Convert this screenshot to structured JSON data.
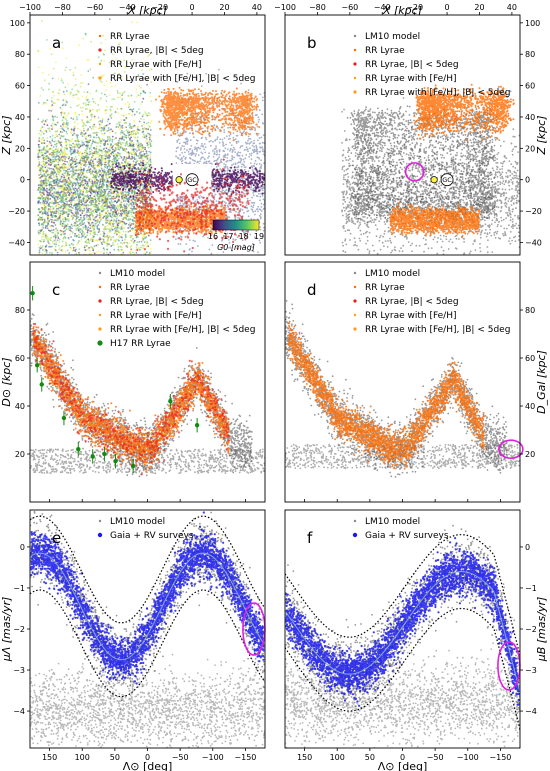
{
  "chart_data": [
    {
      "id": "a",
      "type": "scatter",
      "panel_label": "a",
      "xlabel": "X [kpc]",
      "ylabel": "Z [kpc]",
      "xlim": [
        -100,
        45
      ],
      "ylim": [
        -48,
        105
      ],
      "xticks": [
        -100,
        -80,
        -60,
        -40,
        -20,
        0,
        20,
        40
      ],
      "yticks": [
        -40,
        -20,
        0,
        20,
        40,
        60,
        80,
        100
      ],
      "x_axis_position": "top",
      "legend": [
        "RR Lyrae",
        "RR Lyrae, |B| < 5deg",
        "RR Lyrae with [Fe/H]",
        "RR Lyrae with [Fe/H], |B| < 5deg"
      ],
      "legend_position": "top-right",
      "markers": [
        {
          "label": "GC",
          "x": 0,
          "y": 0
        },
        {
          "label": "",
          "x": -8,
          "y": 0
        }
      ],
      "colorbar": {
        "label": "G0 [mag]",
        "ticks": [
          16,
          17,
          18,
          19
        ],
        "range": [
          16,
          19
        ],
        "colors": [
          "#440154",
          "#3b528b",
          "#21918c",
          "#5ec962",
          "#fde725"
        ]
      }
    },
    {
      "id": "b",
      "type": "scatter",
      "panel_label": "b",
      "xlabel": "X [kpc]",
      "ylabel": "Z [kpc]",
      "xlim": [
        -100,
        45
      ],
      "ylim": [
        -48,
        105
      ],
      "xticks": [
        -100,
        -80,
        -60,
        -40,
        -20,
        0,
        20,
        40
      ],
      "yticks": [
        -40,
        -20,
        0,
        20,
        40,
        60,
        80,
        100
      ],
      "x_axis_position": "top",
      "y_axis_position": "right",
      "legend": [
        "LM10 model",
        "RR Lyrae",
        "RR Lyrae, |B| < 5deg",
        "RR Lyrae with [Fe/H]",
        "RR Lyrae with [Fe/H], |B| < 5deg"
      ],
      "legend_position": "top-right",
      "markers": [
        {
          "label": "GC",
          "x": 0,
          "y": 0
        },
        {
          "label": "",
          "x": -8,
          "y": 0
        }
      ],
      "highlight_circle": {
        "x": -20,
        "y": 5
      }
    },
    {
      "id": "c",
      "type": "scatter",
      "panel_label": "c",
      "xlabel": "",
      "ylabel": "D⊙ [kpc]",
      "xlim": [
        180,
        -180
      ],
      "ylim": [
        0,
        100
      ],
      "yticks": [
        20,
        40,
        60,
        80
      ],
      "legend": [
        "LM10 model",
        "RR Lyrae",
        "RR Lyrae, |B| < 5deg",
        "RR Lyrae with [Fe/H]",
        "RR Lyrae with [Fe/H], |B| < 5deg",
        "H17 RR Lyrae"
      ],
      "legend_position": "top-right",
      "h17_points": [
        {
          "x": 176,
          "y": 87
        },
        {
          "x": 169,
          "y": 57
        },
        {
          "x": 162,
          "y": 49
        },
        {
          "x": 128,
          "y": 35
        },
        {
          "x": 106,
          "y": 22
        },
        {
          "x": 84,
          "y": 19
        },
        {
          "x": 66,
          "y": 20
        },
        {
          "x": 49,
          "y": 17
        },
        {
          "x": 22,
          "y": 15
        },
        {
          "x": -35,
          "y": 42
        },
        {
          "x": -76,
          "y": 32
        }
      ]
    },
    {
      "id": "d",
      "type": "scatter",
      "panel_label": "d",
      "xlabel": "",
      "ylabel": "D_Gal [kpc]",
      "xlim": [
        180,
        -180
      ],
      "ylim": [
        0,
        100
      ],
      "yticks": [
        20,
        40,
        60,
        80
      ],
      "y_axis_position": "right",
      "legend": [
        "LM10 model",
        "RR Lyrae",
        "RR Lyrae, |B| < 5deg",
        "RR Lyrae with [Fe/H]",
        "RR Lyrae with [Fe/H], |B| < 5deg"
      ],
      "legend_position": "top-right",
      "highlight_circle": {
        "x": -166,
        "y": 22
      }
    },
    {
      "id": "e",
      "type": "scatter",
      "panel_label": "e",
      "xlabel": "Λ⊙ [deg]",
      "ylabel": "μΛ [mas/yr]",
      "xlim": [
        180,
        -180
      ],
      "ylim": [
        -4.9,
        0.9
      ],
      "xticks": [
        150,
        100,
        50,
        0,
        -50,
        -100,
        -150
      ],
      "yticks": [
        -4,
        -3,
        -2,
        -1,
        0
      ],
      "legend": [
        "LM10 model",
        "Gaia + RV surveys"
      ],
      "legend_position": "top-center",
      "highlight_circle": {
        "x": -163,
        "y": -2.0
      }
    },
    {
      "id": "f",
      "type": "scatter",
      "panel_label": "f",
      "xlabel": "Λ⊙ [deg]",
      "ylabel": "μB [mas/yr]",
      "xlim": [
        180,
        -180
      ],
      "ylim": [
        -4.9,
        0.9
      ],
      "xticks": [
        150,
        100,
        50,
        0,
        -50,
        -100,
        -150
      ],
      "yticks": [
        -4,
        -3,
        -2,
        -1,
        0
      ],
      "y_axis_position": "right",
      "legend": [
        "LM10 model",
        "Gaia + RV surveys"
      ],
      "legend_position": "top-center",
      "highlight_circle": {
        "x": -163,
        "y": -2.9
      }
    }
  ],
  "colors": {
    "model": "#333333",
    "rr": "#ff6a00",
    "rr_lowb": "#e8201c",
    "feh": "#ff9a1a",
    "gaia": "#1a1aee",
    "h17": "#138a13",
    "highlight": "#e020e0",
    "guide": "#88aacc"
  }
}
